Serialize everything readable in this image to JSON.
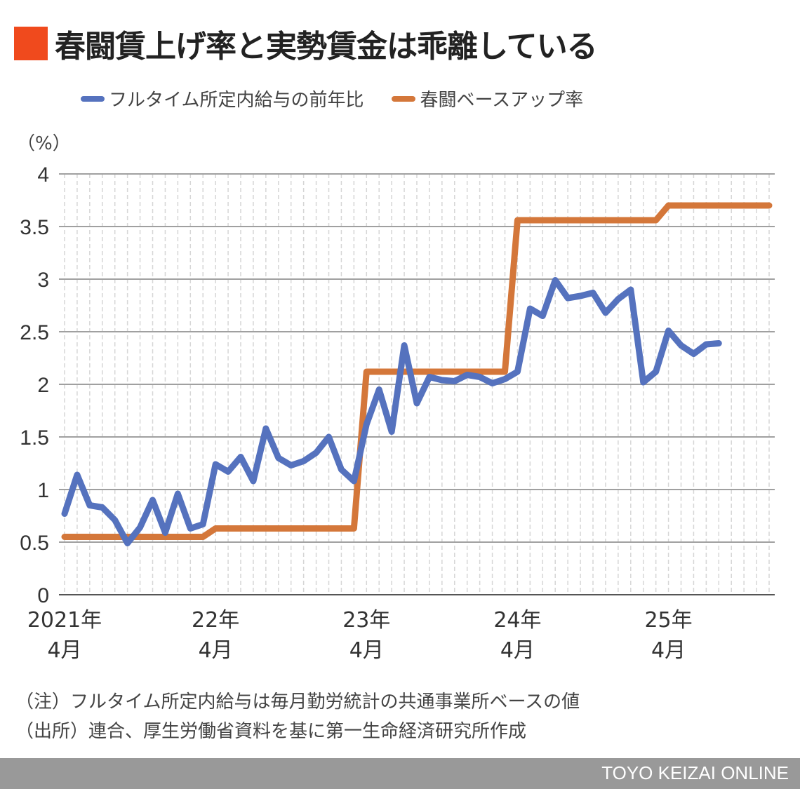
{
  "title": "春闘賃上げ率と実勢賃金は乖離している",
  "colors": {
    "title_marker": "#f04a1d",
    "blue": "#5572be",
    "orange": "#d4773a",
    "footer": "#999999"
  },
  "chart_data": {
    "type": "line",
    "unit_label": "（%）",
    "ylim": [
      0,
      4
    ],
    "y_ticks": [
      "0",
      "0.5",
      "1",
      "1.5",
      "2",
      "2.5",
      "3",
      "3.5",
      "4"
    ],
    "x_count": 57,
    "x_ticks": [
      {
        "index": 0,
        "line1": "2021年",
        "line2": "4月"
      },
      {
        "index": 12,
        "line1": "22年",
        "line2": "4月"
      },
      {
        "index": 24,
        "line1": "23年",
        "line2": "4月"
      },
      {
        "index": 36,
        "line1": "24年",
        "line2": "4月"
      },
      {
        "index": 48,
        "line1": "25年",
        "line2": "4月"
      }
    ],
    "grid": true,
    "legend_position": "top",
    "series": [
      {
        "name": "フルタイム所定内給与の前年比",
        "color": "#5572be",
        "values": [
          0.77,
          1.14,
          0.85,
          0.83,
          0.71,
          0.49,
          0.64,
          0.9,
          0.59,
          0.96,
          0.63,
          0.67,
          1.24,
          1.17,
          1.31,
          1.08,
          1.58,
          1.3,
          1.23,
          1.27,
          1.35,
          1.5,
          1.19,
          1.08,
          1.62,
          1.95,
          1.55,
          2.37,
          1.82,
          2.07,
          2.04,
          2.03,
          2.09,
          2.07,
          2.01,
          2.05,
          2.12,
          2.72,
          2.65,
          2.99,
          2.82,
          2.84,
          2.87,
          2.68,
          2.81,
          2.9,
          2.02,
          2.12,
          2.51,
          2.37,
          2.29,
          2.38,
          2.39
        ]
      },
      {
        "name": "春闘ベースアップ率",
        "color": "#d4773a",
        "values": [
          0.55,
          0.55,
          0.55,
          0.55,
          0.55,
          0.55,
          0.55,
          0.55,
          0.55,
          0.55,
          0.55,
          0.55,
          0.63,
          0.63,
          0.63,
          0.63,
          0.63,
          0.63,
          0.63,
          0.63,
          0.63,
          0.63,
          0.63,
          0.63,
          2.12,
          2.12,
          2.12,
          2.12,
          2.12,
          2.12,
          2.12,
          2.12,
          2.12,
          2.12,
          2.12,
          2.12,
          3.56,
          3.56,
          3.56,
          3.56,
          3.56,
          3.56,
          3.56,
          3.56,
          3.56,
          3.56,
          3.56,
          3.56,
          3.7,
          3.7,
          3.7,
          3.7,
          3.7,
          3.7,
          3.7,
          3.7,
          3.7
        ]
      }
    ]
  },
  "notes": [
    "（注）フルタイム所定内給与は毎月勤労統計の共通事業所ベースの値",
    "（出所）連合、厚生労働省資料を基に第一生命経済研究所作成"
  ],
  "footer": "TOYO KEIZAI ONLINE"
}
